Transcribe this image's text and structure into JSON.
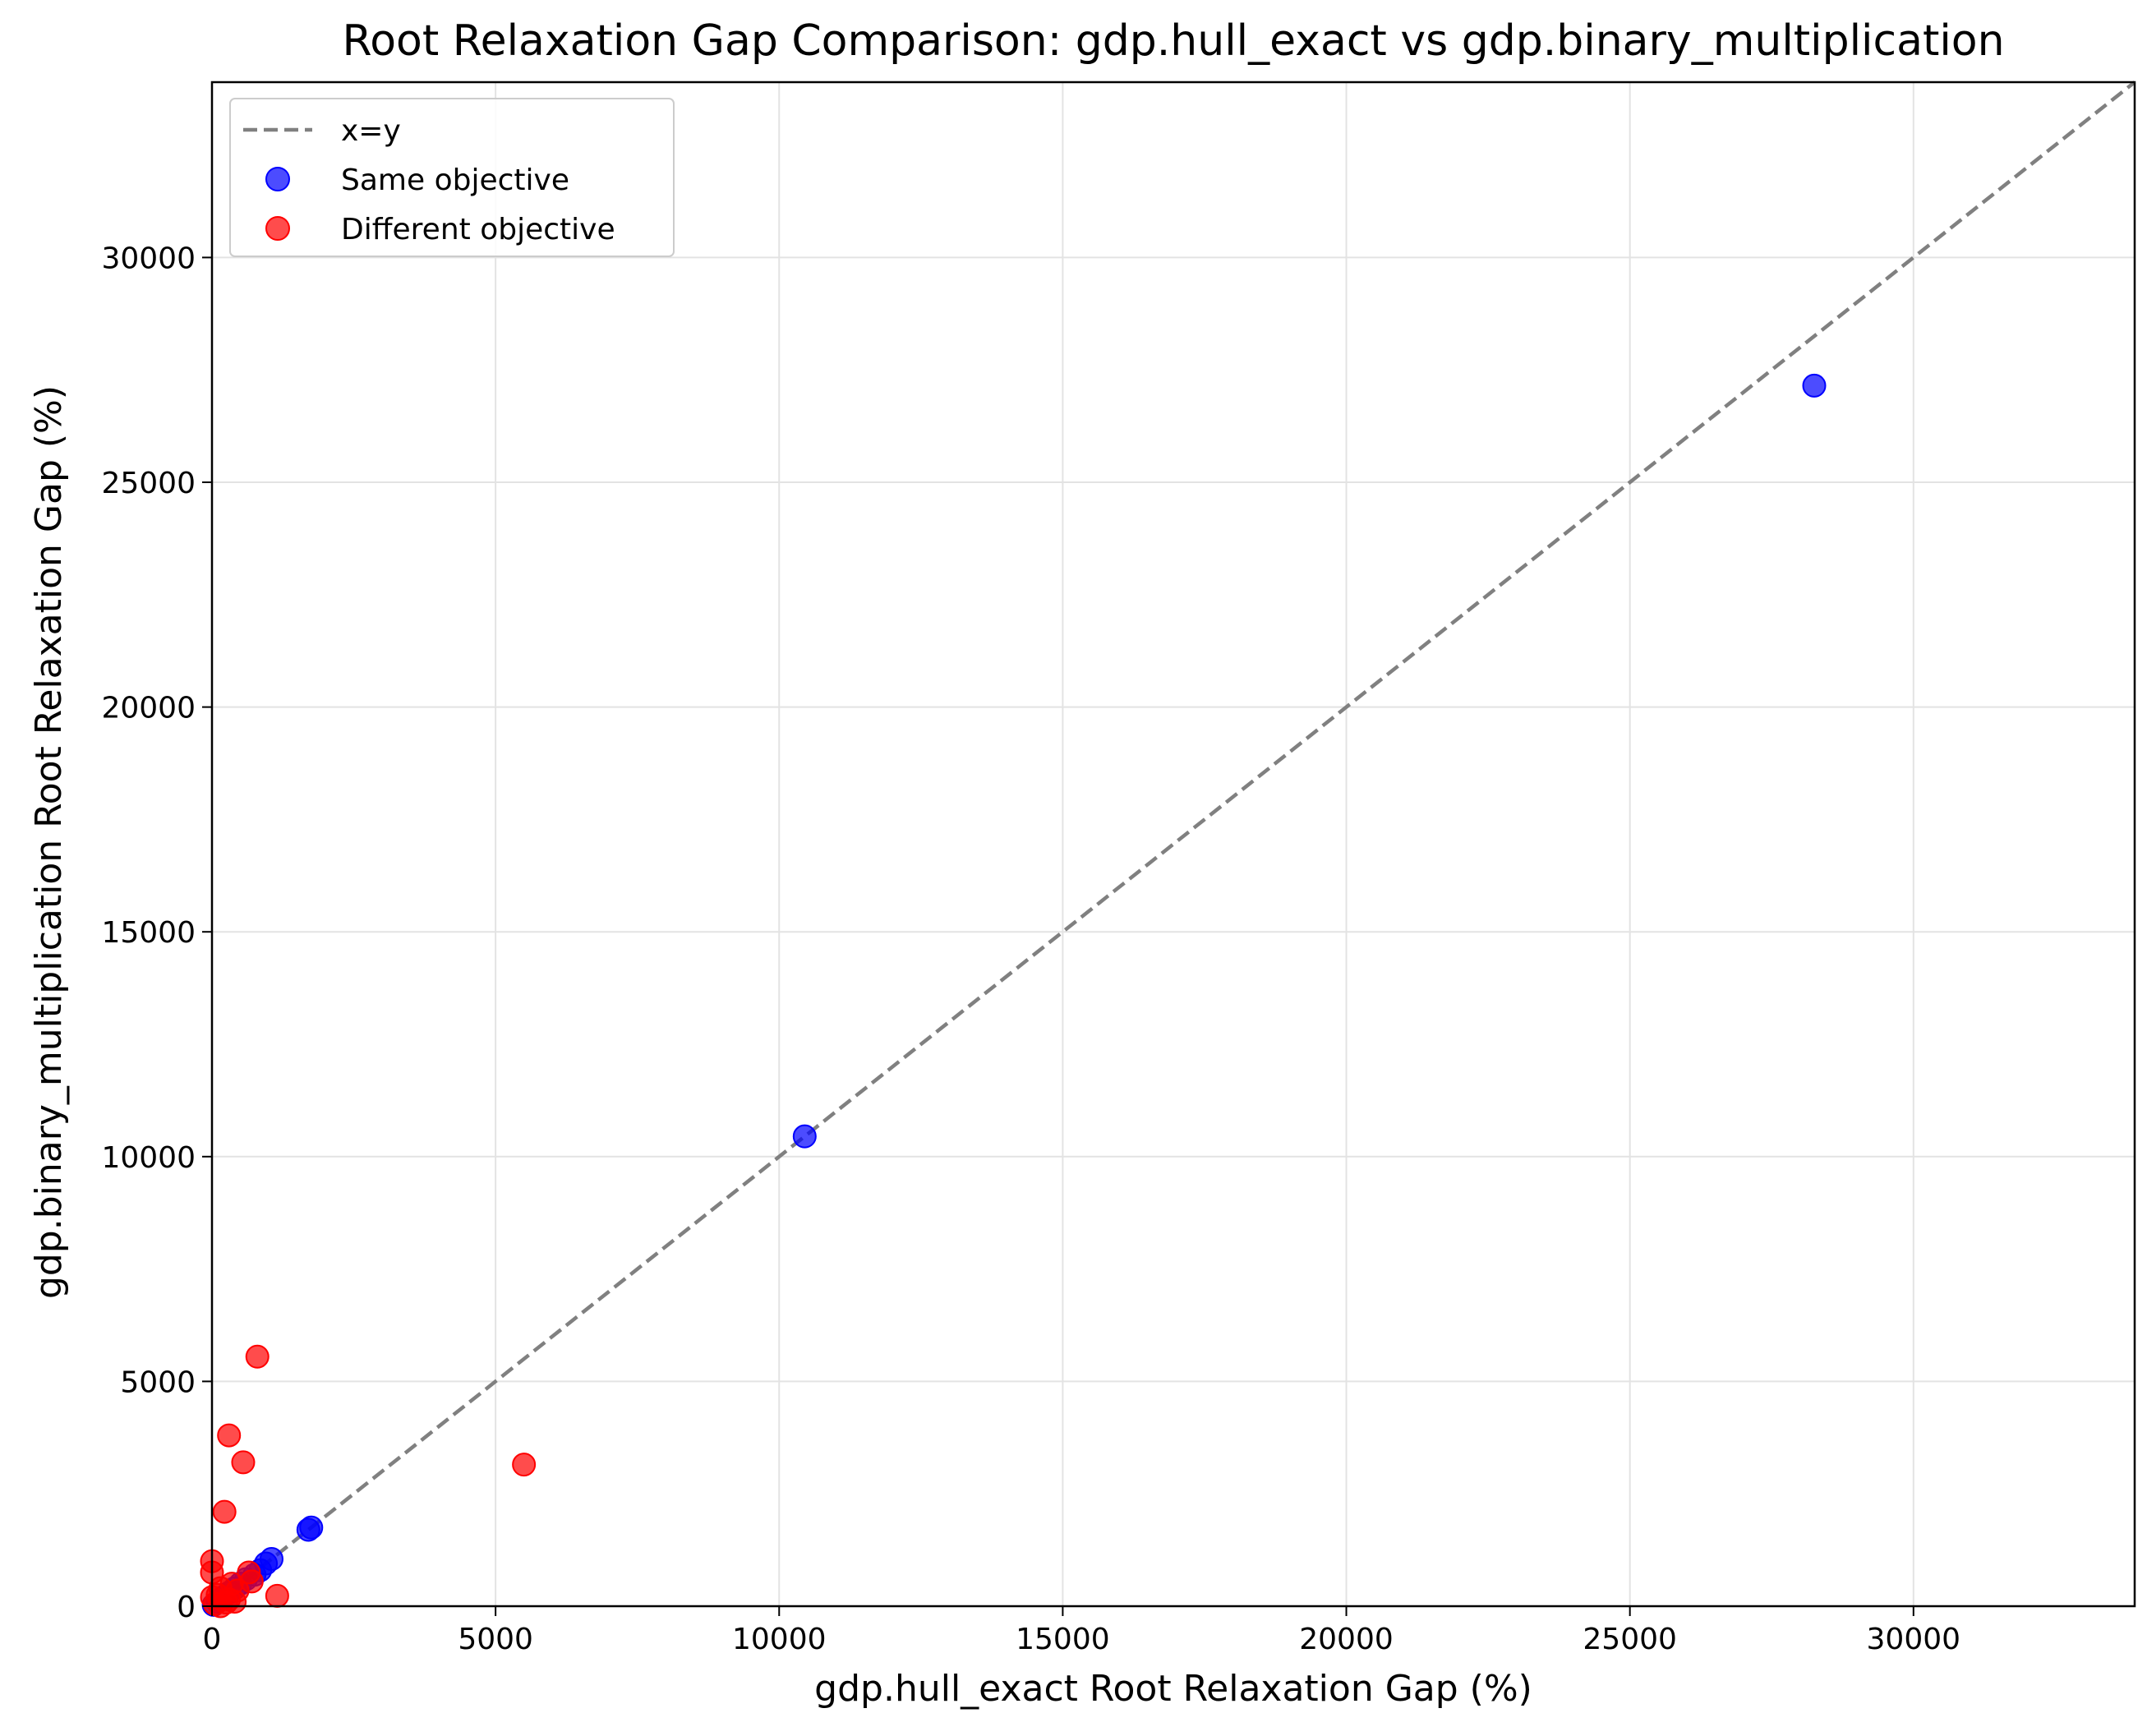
{
  "chart_data": {
    "type": "scatter",
    "title": "Root Relaxation Gap Comparison: gdp.hull_exact vs gdp.binary_multiplication",
    "xlabel": "gdp.hull_exact Root Relaxation Gap (%)",
    "ylabel": "gdp.binary_multiplication Root Relaxation Gap (%)",
    "xlim": [
      0,
      33900
    ],
    "ylim": [
      0,
      33900
    ],
    "xticks": [
      0,
      5000,
      10000,
      15000,
      20000,
      25000,
      30000
    ],
    "yticks": [
      0,
      5000,
      10000,
      15000,
      20000,
      25000,
      30000
    ],
    "grid": true,
    "legend_position": "upper-left",
    "reference_line": {
      "name": "x=y",
      "style": "dashed",
      "color": "#808080"
    },
    "series": [
      {
        "name": "Same objective",
        "color": "#0000ff",
        "points": [
          [
            28250,
            27150
          ],
          [
            10450,
            10450
          ],
          [
            1750,
            1750
          ],
          [
            1700,
            1700
          ],
          [
            1050,
            1050
          ],
          [
            950,
            950
          ],
          [
            850,
            800
          ],
          [
            750,
            700
          ],
          [
            600,
            600
          ],
          [
            500,
            500
          ],
          [
            400,
            400
          ],
          [
            300,
            300
          ],
          [
            200,
            200
          ],
          [
            100,
            100
          ],
          [
            30,
            30
          ]
        ]
      },
      {
        "name": "Different objective",
        "color": "#ff0000",
        "points": [
          [
            5500,
            3150
          ],
          [
            800,
            5550
          ],
          [
            300,
            3800
          ],
          [
            550,
            3200
          ],
          [
            220,
            2100
          ],
          [
            1150,
            230
          ],
          [
            0,
            1000
          ],
          [
            650,
            750
          ],
          [
            0,
            750
          ],
          [
            700,
            550
          ],
          [
            350,
            500
          ],
          [
            150,
            400
          ],
          [
            450,
            350
          ],
          [
            100,
            250
          ],
          [
            300,
            150
          ],
          [
            250,
            80
          ],
          [
            50,
            50
          ],
          [
            400,
            100
          ],
          [
            150,
            0
          ],
          [
            0,
            200
          ]
        ]
      }
    ]
  }
}
